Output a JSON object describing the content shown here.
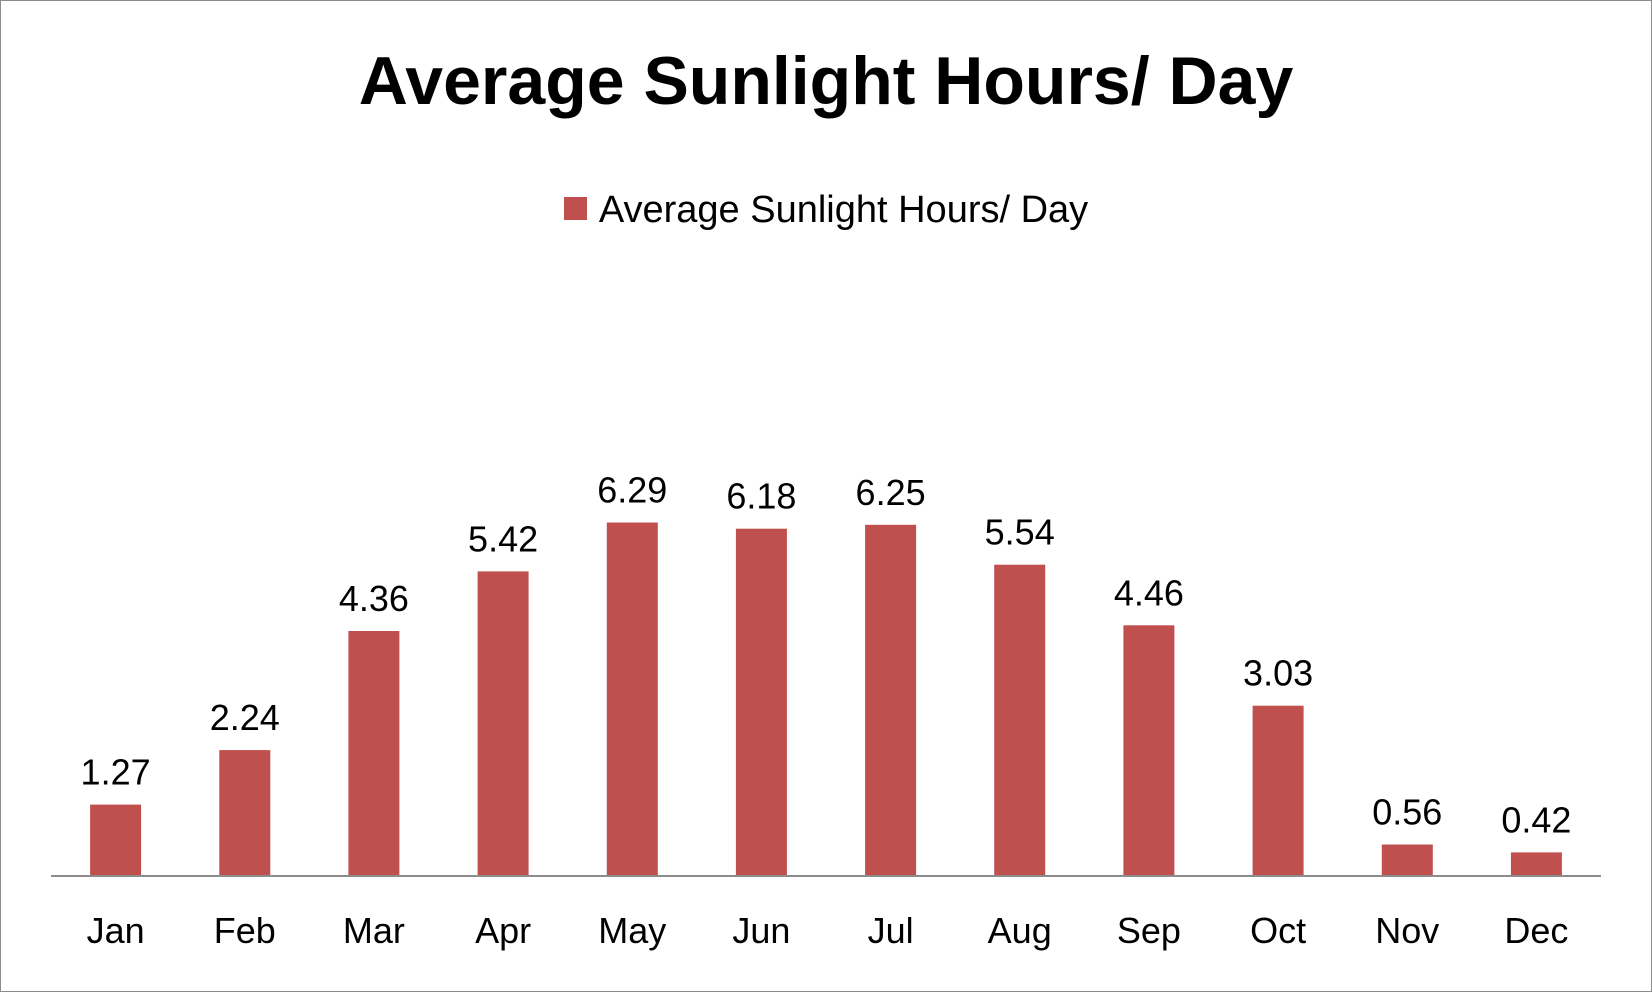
{
  "chart_data": {
    "type": "bar",
    "title": "Average Sunlight Hours/ Day",
    "xlabel": "",
    "ylabel": "",
    "categories": [
      "Jan",
      "Feb",
      "Mar",
      "Apr",
      "May",
      "Jun",
      "Jul",
      "Aug",
      "Sep",
      "Oct",
      "Nov",
      "Dec"
    ],
    "series": [
      {
        "name": "Average Sunlight Hours/ Day",
        "color": "#c0504d",
        "values": [
          1.27,
          2.24,
          4.36,
          5.42,
          6.29,
          6.18,
          6.25,
          5.54,
          4.46,
          3.03,
          0.56,
          0.42
        ],
        "labels": [
          "1.27",
          "2.24",
          "4.36",
          "5.42",
          "6.29",
          "6.18",
          "6.25",
          "5.54",
          "4.46",
          "3.03",
          "0.56",
          "0.42"
        ]
      }
    ],
    "ylim": [
      0,
      7
    ],
    "grid": false,
    "legend_position": "top",
    "axis_color": "#8c8c8c"
  }
}
